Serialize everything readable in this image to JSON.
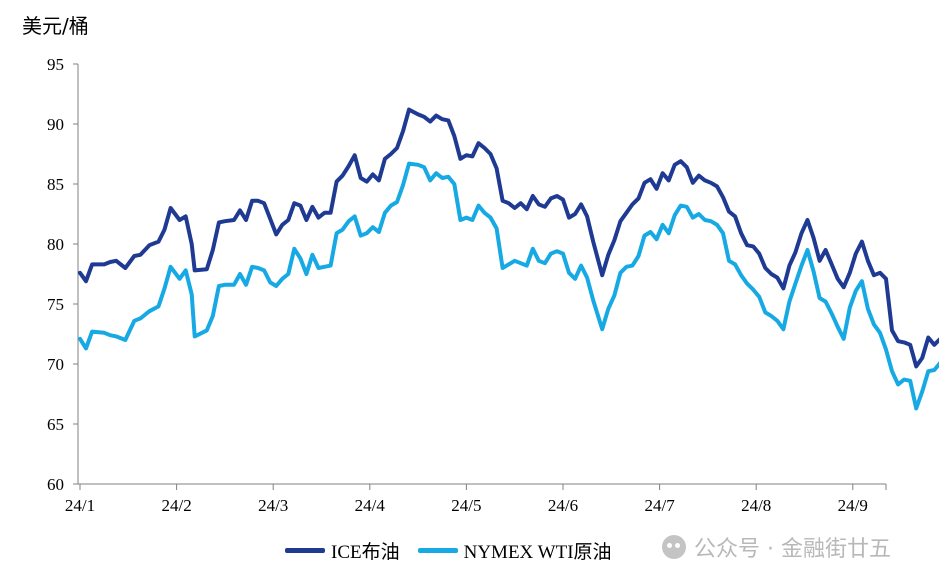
{
  "chart_data": {
    "type": "line",
    "ylabel": "美元/桶",
    "ylim": [
      60,
      95
    ],
    "yticks": [
      60,
      65,
      70,
      75,
      80,
      85,
      90,
      95
    ],
    "xticks": [
      "24/1",
      "24/2",
      "24/3",
      "24/4",
      "24/5",
      "24/6",
      "24/7",
      "24/8",
      "24/9"
    ],
    "grid": false,
    "legend_position": "bottom",
    "series": [
      {
        "name": "ICE布油",
        "color": "#1f3a93",
        "points": [
          [
            0.0,
            77.6
          ],
          [
            0.2,
            76.9
          ],
          [
            0.4,
            78.3
          ],
          [
            0.8,
            78.3
          ],
          [
            1.0,
            78.5
          ],
          [
            1.2,
            78.6
          ],
          [
            1.5,
            78.0
          ],
          [
            1.8,
            79.0
          ],
          [
            2.0,
            79.1
          ],
          [
            2.3,
            79.9
          ],
          [
            2.6,
            80.2
          ],
          [
            2.8,
            81.2
          ],
          [
            3.0,
            83.0
          ],
          [
            3.3,
            82.0
          ],
          [
            3.5,
            82.3
          ],
          [
            3.7,
            80.0
          ],
          [
            3.8,
            77.8
          ],
          [
            4.2,
            77.9
          ],
          [
            4.4,
            79.5
          ],
          [
            4.6,
            81.8
          ],
          [
            4.8,
            81.9
          ],
          [
            5.1,
            82.0
          ],
          [
            5.3,
            82.8
          ],
          [
            5.5,
            82.0
          ],
          [
            5.7,
            83.6
          ],
          [
            5.9,
            83.6
          ],
          [
            6.1,
            83.4
          ],
          [
            6.3,
            82.1
          ],
          [
            6.5,
            80.8
          ],
          [
            6.7,
            81.6
          ],
          [
            6.9,
            82.0
          ],
          [
            7.1,
            83.4
          ],
          [
            7.3,
            83.2
          ],
          [
            7.5,
            82.0
          ],
          [
            7.7,
            83.1
          ],
          [
            7.9,
            82.2
          ],
          [
            8.1,
            82.6
          ],
          [
            8.3,
            82.6
          ],
          [
            8.5,
            85.2
          ],
          [
            8.7,
            85.7
          ],
          [
            8.9,
            86.5
          ],
          [
            9.1,
            87.4
          ],
          [
            9.3,
            85.5
          ],
          [
            9.5,
            85.2
          ],
          [
            9.7,
            85.8
          ],
          [
            9.9,
            85.3
          ],
          [
            10.1,
            87.1
          ],
          [
            10.3,
            87.5
          ],
          [
            10.5,
            88.0
          ],
          [
            10.7,
            89.4
          ],
          [
            10.9,
            91.2
          ],
          [
            11.2,
            90.8
          ],
          [
            11.4,
            90.6
          ],
          [
            11.6,
            90.2
          ],
          [
            11.8,
            90.7
          ],
          [
            12.0,
            90.4
          ],
          [
            12.2,
            90.3
          ],
          [
            12.4,
            89.0
          ],
          [
            12.6,
            87.1
          ],
          [
            12.8,
            87.4
          ],
          [
            13.0,
            87.3
          ],
          [
            13.2,
            88.4
          ],
          [
            13.4,
            88.0
          ],
          [
            13.6,
            87.5
          ],
          [
            13.8,
            86.3
          ],
          [
            14.0,
            83.6
          ],
          [
            14.2,
            83.4
          ],
          [
            14.4,
            83.0
          ],
          [
            14.6,
            83.4
          ],
          [
            14.8,
            82.9
          ],
          [
            15.0,
            84.0
          ],
          [
            15.2,
            83.3
          ],
          [
            15.4,
            83.1
          ],
          [
            15.6,
            83.8
          ],
          [
            15.8,
            84.0
          ],
          [
            16.0,
            83.7
          ],
          [
            16.2,
            82.2
          ],
          [
            16.4,
            82.5
          ],
          [
            16.6,
            83.3
          ],
          [
            16.8,
            82.3
          ],
          [
            17.0,
            80.2
          ],
          [
            17.3,
            77.4
          ],
          [
            17.5,
            79.1
          ],
          [
            17.7,
            80.3
          ],
          [
            17.9,
            81.9
          ],
          [
            18.1,
            82.6
          ],
          [
            18.3,
            83.3
          ],
          [
            18.5,
            83.8
          ],
          [
            18.7,
            85.1
          ],
          [
            18.9,
            85.4
          ],
          [
            19.1,
            84.6
          ],
          [
            19.3,
            85.9
          ],
          [
            19.5,
            85.3
          ],
          [
            19.7,
            86.6
          ],
          [
            19.9,
            86.9
          ],
          [
            20.1,
            86.4
          ],
          [
            20.3,
            85.1
          ],
          [
            20.5,
            85.7
          ],
          [
            20.7,
            85.3
          ],
          [
            20.9,
            85.1
          ],
          [
            21.1,
            84.8
          ],
          [
            21.3,
            83.9
          ],
          [
            21.5,
            82.7
          ],
          [
            21.7,
            82.3
          ],
          [
            21.9,
            80.9
          ],
          [
            22.1,
            79.9
          ],
          [
            22.3,
            79.8
          ],
          [
            22.5,
            79.2
          ],
          [
            22.7,
            78.0
          ],
          [
            22.9,
            77.5
          ],
          [
            23.1,
            77.2
          ],
          [
            23.3,
            76.3
          ],
          [
            23.5,
            78.2
          ],
          [
            23.7,
            79.3
          ],
          [
            23.9,
            80.9
          ],
          [
            24.1,
            82.0
          ],
          [
            24.3,
            80.5
          ],
          [
            24.5,
            78.6
          ],
          [
            24.7,
            79.5
          ],
          [
            24.9,
            78.3
          ],
          [
            25.1,
            77.1
          ],
          [
            25.3,
            76.4
          ],
          [
            25.5,
            77.6
          ],
          [
            25.7,
            79.2
          ],
          [
            25.9,
            80.2
          ],
          [
            26.1,
            78.6
          ],
          [
            26.3,
            77.4
          ],
          [
            26.5,
            77.6
          ],
          [
            26.7,
            77.1
          ],
          [
            26.9,
            72.8
          ],
          [
            27.1,
            71.9
          ],
          [
            27.3,
            71.8
          ],
          [
            27.5,
            71.6
          ],
          [
            27.7,
            69.8
          ],
          [
            27.9,
            70.5
          ],
          [
            28.1,
            72.2
          ],
          [
            28.3,
            71.6
          ],
          [
            28.5,
            72.1
          ],
          [
            28.7,
            72.6
          ],
          [
            28.8,
            73.1
          ]
        ]
      },
      {
        "name": "NYMEX WTI原油",
        "color": "#17a9e3",
        "points": [
          [
            0.0,
            72.1
          ],
          [
            0.2,
            71.3
          ],
          [
            0.4,
            72.7
          ],
          [
            0.8,
            72.6
          ],
          [
            1.0,
            72.4
          ],
          [
            1.2,
            72.3
          ],
          [
            1.5,
            72.0
          ],
          [
            1.8,
            73.6
          ],
          [
            2.0,
            73.8
          ],
          [
            2.3,
            74.4
          ],
          [
            2.6,
            74.8
          ],
          [
            2.8,
            76.3
          ],
          [
            3.0,
            78.1
          ],
          [
            3.3,
            77.1
          ],
          [
            3.5,
            77.8
          ],
          [
            3.7,
            75.8
          ],
          [
            3.8,
            72.3
          ],
          [
            4.2,
            72.8
          ],
          [
            4.4,
            74.0
          ],
          [
            4.6,
            76.5
          ],
          [
            4.8,
            76.6
          ],
          [
            5.1,
            76.6
          ],
          [
            5.3,
            77.5
          ],
          [
            5.5,
            76.6
          ],
          [
            5.7,
            78.1
          ],
          [
            5.9,
            78.0
          ],
          [
            6.1,
            77.8
          ],
          [
            6.3,
            76.8
          ],
          [
            6.5,
            76.5
          ],
          [
            6.7,
            77.1
          ],
          [
            6.9,
            77.5
          ],
          [
            7.1,
            79.6
          ],
          [
            7.3,
            78.8
          ],
          [
            7.5,
            77.5
          ],
          [
            7.7,
            79.1
          ],
          [
            7.9,
            78.0
          ],
          [
            8.1,
            78.1
          ],
          [
            8.3,
            78.2
          ],
          [
            8.5,
            80.9
          ],
          [
            8.7,
            81.2
          ],
          [
            8.9,
            81.9
          ],
          [
            9.1,
            82.3
          ],
          [
            9.3,
            80.7
          ],
          [
            9.5,
            80.9
          ],
          [
            9.7,
            81.4
          ],
          [
            9.9,
            81.0
          ],
          [
            10.1,
            82.6
          ],
          [
            10.3,
            83.2
          ],
          [
            10.5,
            83.5
          ],
          [
            10.7,
            84.9
          ],
          [
            10.9,
            86.7
          ],
          [
            11.2,
            86.6
          ],
          [
            11.4,
            86.4
          ],
          [
            11.6,
            85.3
          ],
          [
            11.8,
            85.9
          ],
          [
            12.0,
            85.5
          ],
          [
            12.2,
            85.6
          ],
          [
            12.4,
            85.0
          ],
          [
            12.6,
            82.0
          ],
          [
            12.8,
            82.2
          ],
          [
            13.0,
            82.0
          ],
          [
            13.2,
            83.2
          ],
          [
            13.4,
            82.6
          ],
          [
            13.6,
            82.2
          ],
          [
            13.8,
            81.3
          ],
          [
            14.0,
            78.0
          ],
          [
            14.2,
            78.3
          ],
          [
            14.4,
            78.6
          ],
          [
            14.6,
            78.4
          ],
          [
            14.8,
            78.2
          ],
          [
            15.0,
            79.6
          ],
          [
            15.2,
            78.6
          ],
          [
            15.4,
            78.4
          ],
          [
            15.6,
            79.2
          ],
          [
            15.8,
            79.4
          ],
          [
            16.0,
            79.2
          ],
          [
            16.2,
            77.6
          ],
          [
            16.4,
            77.1
          ],
          [
            16.6,
            78.2
          ],
          [
            16.8,
            77.2
          ],
          [
            17.0,
            75.3
          ],
          [
            17.3,
            72.9
          ],
          [
            17.5,
            74.6
          ],
          [
            17.7,
            75.7
          ],
          [
            17.9,
            77.6
          ],
          [
            18.1,
            78.1
          ],
          [
            18.3,
            78.2
          ],
          [
            18.5,
            79.0
          ],
          [
            18.7,
            80.7
          ],
          [
            18.9,
            81.0
          ],
          [
            19.1,
            80.4
          ],
          [
            19.3,
            81.6
          ],
          [
            19.5,
            80.9
          ],
          [
            19.7,
            82.4
          ],
          [
            19.9,
            83.2
          ],
          [
            20.1,
            83.1
          ],
          [
            20.3,
            82.2
          ],
          [
            20.5,
            82.5
          ],
          [
            20.7,
            82.0
          ],
          [
            20.9,
            81.9
          ],
          [
            21.1,
            81.6
          ],
          [
            21.3,
            80.9
          ],
          [
            21.5,
            78.6
          ],
          [
            21.7,
            78.3
          ],
          [
            21.9,
            77.4
          ],
          [
            22.1,
            76.7
          ],
          [
            22.3,
            76.2
          ],
          [
            22.5,
            75.6
          ],
          [
            22.7,
            74.3
          ],
          [
            22.9,
            74.0
          ],
          [
            23.1,
            73.6
          ],
          [
            23.3,
            72.9
          ],
          [
            23.5,
            75.2
          ],
          [
            23.7,
            76.7
          ],
          [
            23.9,
            78.2
          ],
          [
            24.1,
            79.5
          ],
          [
            24.3,
            77.7
          ],
          [
            24.5,
            75.5
          ],
          [
            24.7,
            75.2
          ],
          [
            24.9,
            74.2
          ],
          [
            25.1,
            73.1
          ],
          [
            25.3,
            72.1
          ],
          [
            25.5,
            74.7
          ],
          [
            25.7,
            76.1
          ],
          [
            25.9,
            76.9
          ],
          [
            26.1,
            74.6
          ],
          [
            26.3,
            73.3
          ],
          [
            26.5,
            72.6
          ],
          [
            26.7,
            71.2
          ],
          [
            26.9,
            69.4
          ],
          [
            27.1,
            68.3
          ],
          [
            27.3,
            68.7
          ],
          [
            27.5,
            68.6
          ],
          [
            27.7,
            66.3
          ],
          [
            27.9,
            67.7
          ],
          [
            28.1,
            69.4
          ],
          [
            28.3,
            69.5
          ],
          [
            28.5,
            70.1
          ],
          [
            28.7,
            70.8
          ],
          [
            28.8,
            71.3
          ]
        ]
      }
    ]
  },
  "watermark": {
    "text": "公众号 · 金融街廿五",
    "icon": "wechat-icon"
  }
}
